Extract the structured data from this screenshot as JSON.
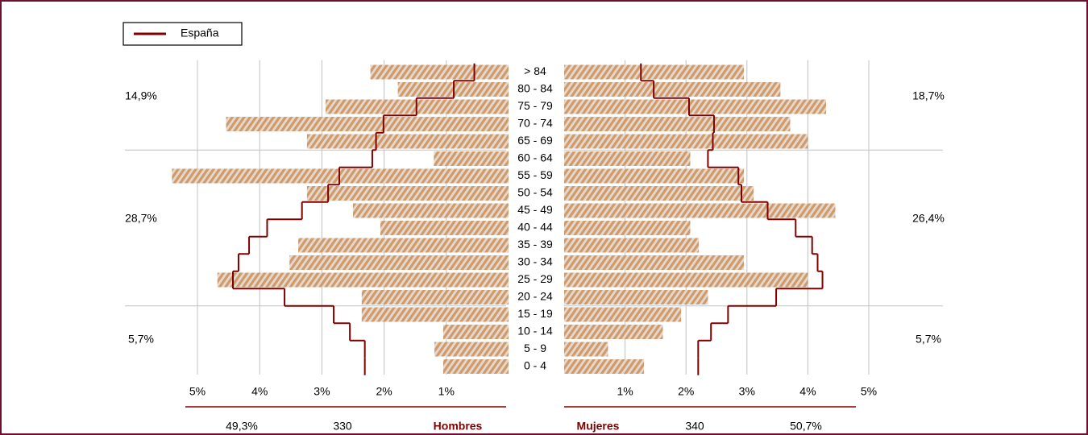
{
  "chart_data": {
    "type": "pyramid",
    "categories": [
      "0 - 4",
      "5 - 9",
      "10 - 14",
      "15 - 19",
      "20 - 24",
      "25 - 29",
      "30 - 34",
      "35 - 39",
      "40 - 44",
      "45 - 49",
      "50 - 54",
      "55 - 59",
      "60 - 64",
      "65 - 69",
      "70 - 74",
      "75 - 79",
      "80 - 84",
      "> 84"
    ],
    "series": [
      {
        "name": "Hombres",
        "side": "left",
        "type": "bar",
        "color": "#d4a57c",
        "values": [
          1.05,
          1.19,
          1.05,
          2.36,
          2.36,
          4.68,
          3.52,
          3.38,
          2.06,
          2.5,
          3.24,
          5.41,
          1.2,
          3.24,
          4.54,
          2.94,
          1.78,
          2.22
        ]
      },
      {
        "name": "Mujeres",
        "side": "right",
        "type": "bar",
        "color": "#d4a57c",
        "values": [
          1.31,
          0.72,
          1.62,
          1.92,
          2.36,
          4.0,
          2.95,
          2.21,
          2.07,
          4.45,
          3.11,
          2.95,
          2.07,
          4.0,
          3.71,
          4.3,
          3.55,
          2.95
        ]
      },
      {
        "name": "España",
        "side": "left",
        "type": "step",
        "color": "#800000",
        "values": [
          2.31,
          2.31,
          2.55,
          2.81,
          3.6,
          4.43,
          4.34,
          4.17,
          3.88,
          3.32,
          2.9,
          2.72,
          2.19,
          2.13,
          2.01,
          1.48,
          0.88,
          0.55
        ]
      },
      {
        "name": "España",
        "side": "right",
        "type": "step",
        "color": "#800000",
        "values": [
          2.2,
          2.2,
          2.41,
          2.69,
          3.48,
          4.24,
          4.16,
          4.07,
          3.8,
          3.34,
          2.91,
          2.86,
          2.36,
          2.44,
          2.46,
          2.05,
          1.47,
          1.26
        ]
      }
    ],
    "xlim": [
      0,
      5
    ],
    "xticks": [
      {
        "value": 1,
        "label": "1%"
      },
      {
        "value": 2,
        "label": "2%"
      },
      {
        "value": 3,
        "label": "3%"
      },
      {
        "value": 4,
        "label": "4%"
      },
      {
        "value": 5,
        "label": "5%"
      }
    ],
    "grid": true,
    "group_shares_left": [
      {
        "value": 14.9,
        "label": "14,9%"
      },
      {
        "value": 28.7,
        "label": "28,7%"
      },
      {
        "value": 5.7,
        "label": "5,7%"
      }
    ],
    "group_shares_right": [
      {
        "value": 18.7,
        "label": "18,7%"
      },
      {
        "value": 26.4,
        "label": "26,4%"
      },
      {
        "value": 5.7,
        "label": "5,7%"
      }
    ],
    "left_total": 330,
    "right_total": 340,
    "left_share": {
      "value": 49.3,
      "label": "49,3%"
    },
    "right_share": {
      "value": 50.7,
      "label": "50,7%"
    }
  }
}
